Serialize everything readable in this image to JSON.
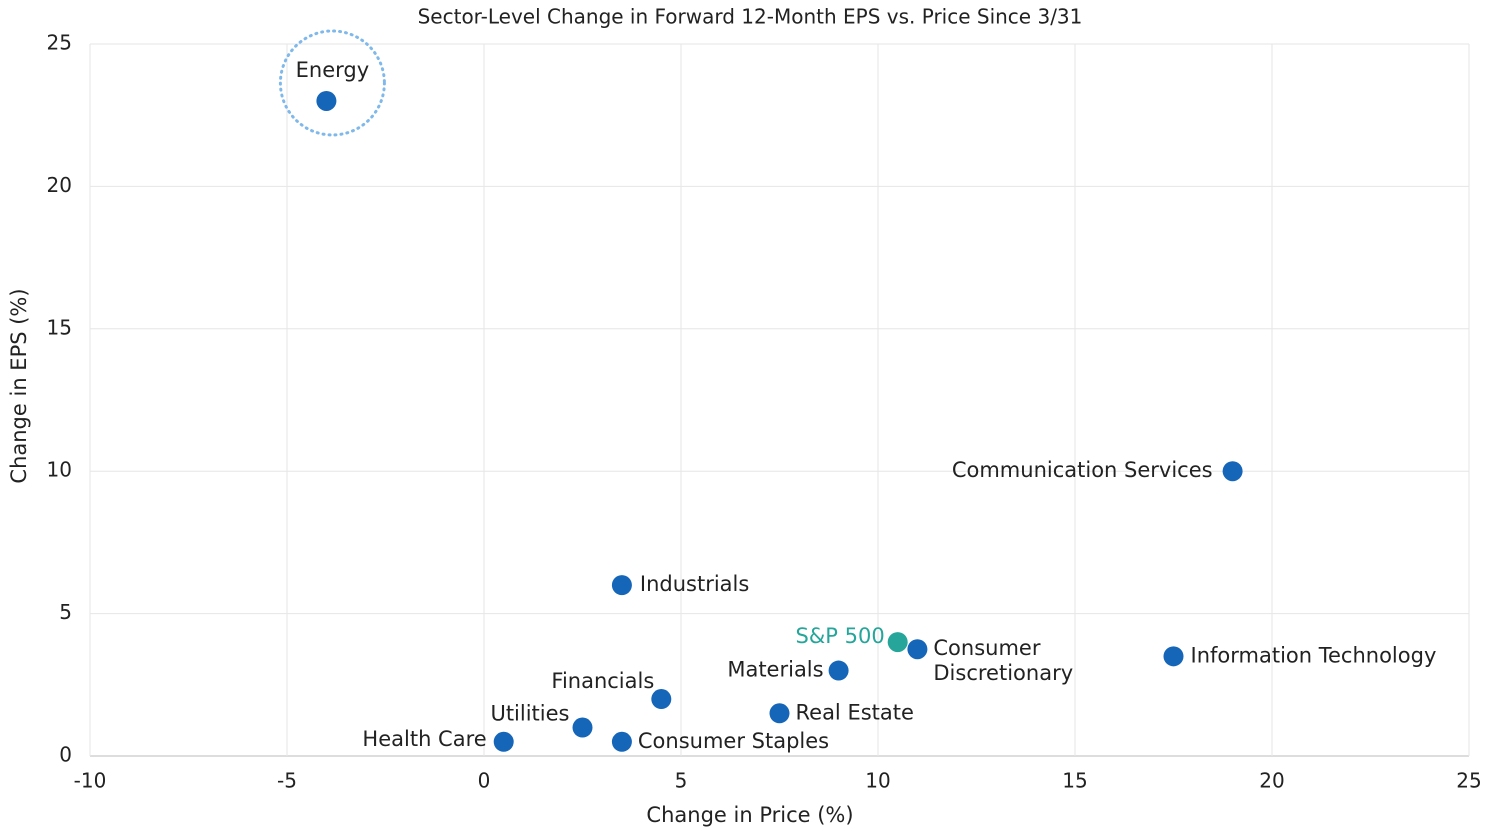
{
  "chart_data": {
    "type": "scatter",
    "title": "Sector-Level Change in Forward 12-Month EPS vs. Price Since 3/31",
    "xlabel": "Change in Price (%)",
    "ylabel": "Change in EPS (%)",
    "color": "#1565b8",
    "points": [
      {
        "label": "Energy",
        "x": -4,
        "y": 23
      },
      {
        "label": "Communication Services",
        "x": 19,
        "y": 10
      },
      {
        "label": "Industrials",
        "x": 3.5,
        "y": 6
      },
      {
        "label": "S&P 500",
        "x": 10.5,
        "y": 4,
        "color": "#26a69a"
      },
      {
        "label": [
          "Consumer",
          "Discretionary"
        ],
        "x": 11,
        "y": 3.75
      },
      {
        "label": "Information Technology",
        "x": 17.5,
        "y": 3.5
      },
      {
        "label": "Materials",
        "x": 9,
        "y": 3
      },
      {
        "label": "Financials",
        "x": 4.5,
        "y": 2
      },
      {
        "label": "Real Estate",
        "x": 7.5,
        "y": 1.5
      },
      {
        "label": "Utilities",
        "x": 2.5,
        "y": 1
      },
      {
        "label": "Health Care",
        "x": 0.5,
        "y": 0.5
      },
      {
        "label": "Consumer Staples",
        "x": 3.5,
        "y": 0.5
      }
    ],
    "xlim": [
      -10,
      25
    ],
    "xticks": [
      -10,
      -5,
      0,
      5,
      10,
      15,
      20,
      25
    ],
    "ylim": [
      0,
      25
    ],
    "yticks": [
      0,
      5,
      10,
      15,
      20,
      25
    ],
    "grid": true
  }
}
